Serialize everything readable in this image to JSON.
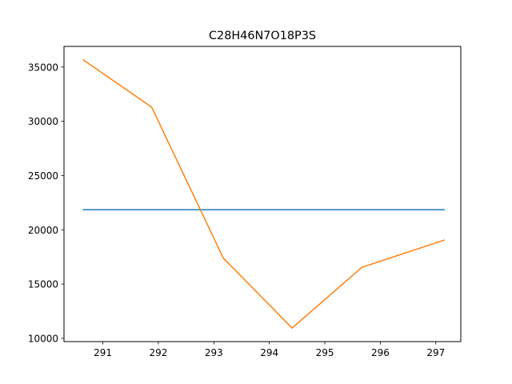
{
  "chart_data": {
    "type": "line",
    "title": "C28H46N7O18P3S",
    "xlabel": "",
    "ylabel": "",
    "xlim": [
      290.3,
      297.45
    ],
    "ylim": [
      9700,
      36900
    ],
    "grid": false,
    "x_ticks": [
      "291",
      "292",
      "293",
      "294",
      "295",
      "296",
      "297"
    ],
    "y_ticks": [
      "10000",
      "15000",
      "20000",
      "25000",
      "30000",
      "35000"
    ],
    "x_tick_values": [
      291,
      292,
      293,
      294,
      295,
      296,
      297
    ],
    "y_tick_values": [
      10000,
      15000,
      20000,
      25000,
      30000,
      35000
    ],
    "series": [
      {
        "color": "#1f77b4",
        "x": [
          290.65,
          297.15
        ],
        "y": [
          21850,
          21850
        ]
      },
      {
        "color": "#ff7f0e",
        "x": [
          290.65,
          291.88,
          293.17,
          294.41,
          295.67,
          297.15
        ],
        "y": [
          35650,
          31300,
          17400,
          10950,
          16550,
          19050
        ]
      }
    ]
  }
}
